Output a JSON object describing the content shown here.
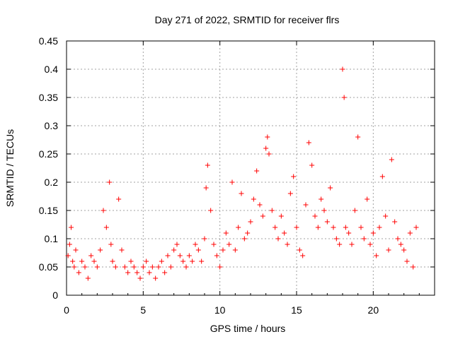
{
  "chart_data": {
    "type": "scatter",
    "title": "Day 271 of 2022, SRMTID for receiver flrs",
    "xlabel": "GPS time / hours",
    "ylabel": "SRMTID / TECUs",
    "xlim": [
      0,
      24
    ],
    "ylim": [
      0,
      0.45
    ],
    "xticks": [
      0,
      5,
      10,
      15,
      20
    ],
    "xtick_labels": [
      "0",
      "5",
      "10",
      "15",
      "20"
    ],
    "yticks": [
      0,
      0.05,
      0.1,
      0.15,
      0.2,
      0.25,
      0.3,
      0.35,
      0.4,
      0.45
    ],
    "ytick_labels": [
      "0",
      "0.05",
      "0.1",
      "0.15",
      "0.2",
      "0.25",
      "0.3",
      "0.35",
      "0.4",
      "0.45"
    ],
    "grid": true,
    "marker": "plus",
    "color": "#ff0000",
    "series": [
      {
        "name": "SRMTID",
        "x": [
          0.1,
          0.2,
          0.3,
          0.4,
          0.5,
          0.6,
          0.8,
          1.0,
          1.2,
          1.4,
          1.6,
          1.8,
          2.0,
          2.2,
          2.4,
          2.6,
          2.8,
          2.9,
          3.0,
          3.2,
          3.4,
          3.6,
          3.8,
          4.0,
          4.2,
          4.4,
          4.6,
          4.8,
          5.0,
          5.2,
          5.4,
          5.6,
          5.8,
          6.0,
          6.2,
          6.4,
          6.6,
          6.8,
          7.0,
          7.2,
          7.4,
          7.6,
          7.8,
          8.0,
          8.2,
          8.4,
          8.6,
          8.8,
          9.0,
          9.1,
          9.2,
          9.4,
          9.6,
          9.8,
          10.0,
          10.2,
          10.4,
          10.6,
          10.8,
          11.0,
          11.2,
          11.4,
          11.6,
          11.8,
          12.0,
          12.2,
          12.4,
          12.6,
          12.8,
          13.0,
          13.1,
          13.2,
          13.4,
          13.6,
          13.8,
          14.0,
          14.2,
          14.4,
          14.6,
          14.8,
          15.0,
          15.2,
          15.4,
          15.6,
          15.8,
          16.0,
          16.2,
          16.4,
          16.6,
          16.8,
          17.0,
          17.2,
          17.4,
          17.6,
          17.8,
          18.0,
          18.1,
          18.2,
          18.4,
          18.6,
          18.8,
          19.0,
          19.2,
          19.4,
          19.6,
          19.8,
          20.0,
          20.2,
          20.4,
          20.6,
          20.8,
          21.0,
          21.2,
          21.4,
          21.6,
          21.8,
          22.0,
          22.2,
          22.4,
          22.6,
          22.8
        ],
        "y": [
          0.07,
          0.09,
          0.12,
          0.06,
          0.05,
          0.08,
          0.04,
          0.06,
          0.05,
          0.03,
          0.07,
          0.06,
          0.05,
          0.08,
          0.15,
          0.12,
          0.2,
          0.09,
          0.06,
          0.05,
          0.17,
          0.08,
          0.05,
          0.04,
          0.06,
          0.05,
          0.04,
          0.03,
          0.05,
          0.06,
          0.04,
          0.05,
          0.03,
          0.05,
          0.06,
          0.04,
          0.07,
          0.05,
          0.08,
          0.09,
          0.07,
          0.06,
          0.05,
          0.07,
          0.06,
          0.09,
          0.08,
          0.06,
          0.1,
          0.19,
          0.23,
          0.15,
          0.09,
          0.07,
          0.05,
          0.08,
          0.11,
          0.09,
          0.2,
          0.08,
          0.12,
          0.18,
          0.1,
          0.11,
          0.13,
          0.17,
          0.22,
          0.16,
          0.14,
          0.26,
          0.28,
          0.25,
          0.15,
          0.12,
          0.1,
          0.14,
          0.11,
          0.09,
          0.18,
          0.21,
          0.12,
          0.08,
          0.07,
          0.16,
          0.27,
          0.23,
          0.14,
          0.12,
          0.17,
          0.15,
          0.13,
          0.19,
          0.12,
          0.1,
          0.09,
          0.4,
          0.35,
          0.12,
          0.11,
          0.09,
          0.15,
          0.28,
          0.12,
          0.1,
          0.17,
          0.09,
          0.11,
          0.07,
          0.12,
          0.21,
          0.14,
          0.08,
          0.24,
          0.13,
          0.1,
          0.09,
          0.08,
          0.06,
          0.11,
          0.05,
          0.12
        ]
      }
    ]
  }
}
